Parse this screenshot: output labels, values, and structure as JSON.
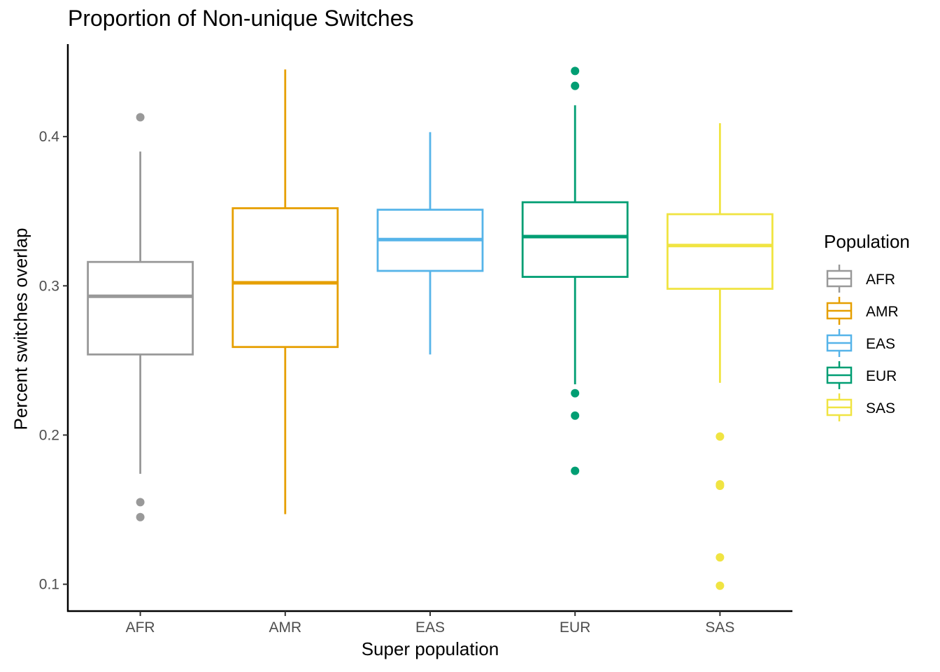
{
  "chart_data": {
    "type": "box",
    "title": "Proportion of Non-unique Switches",
    "xlabel": "Super population",
    "ylabel": "Percent switches overlap",
    "ylim": [
      0.082,
      0.462
    ],
    "yticks": [
      0.1,
      0.2,
      0.3,
      0.4
    ],
    "ytick_labels": [
      "0.1",
      "0.2",
      "0.3",
      "0.4"
    ],
    "legend_title": "Population",
    "legend_position": "right",
    "grid": false,
    "categories": [
      "AFR",
      "AMR",
      "EAS",
      "EUR",
      "SAS"
    ],
    "series": [
      {
        "name": "AFR",
        "color": "#999999",
        "whisker_low": 0.174,
        "q1": 0.254,
        "median": 0.293,
        "q3": 0.316,
        "whisker_high": 0.39,
        "outliers": [
          0.413,
          0.155,
          0.145
        ]
      },
      {
        "name": "AMR",
        "color": "#E69F00",
        "whisker_low": 0.147,
        "q1": 0.259,
        "median": 0.302,
        "q3": 0.352,
        "whisker_high": 0.445,
        "outliers": []
      },
      {
        "name": "EAS",
        "color": "#56B4E9",
        "whisker_low": 0.254,
        "q1": 0.31,
        "median": 0.331,
        "q3": 0.351,
        "whisker_high": 0.403,
        "outliers": []
      },
      {
        "name": "EUR",
        "color": "#009E73",
        "whisker_low": 0.234,
        "q1": 0.306,
        "median": 0.333,
        "q3": 0.356,
        "whisker_high": 0.421,
        "outliers": [
          0.444,
          0.434,
          0.228,
          0.213,
          0.176
        ]
      },
      {
        "name": "SAS",
        "color": "#F0E442",
        "whisker_low": 0.235,
        "q1": 0.298,
        "median": 0.327,
        "q3": 0.348,
        "whisker_high": 0.409,
        "outliers": [
          0.199,
          0.167,
          0.166,
          0.118,
          0.099
        ]
      }
    ]
  }
}
